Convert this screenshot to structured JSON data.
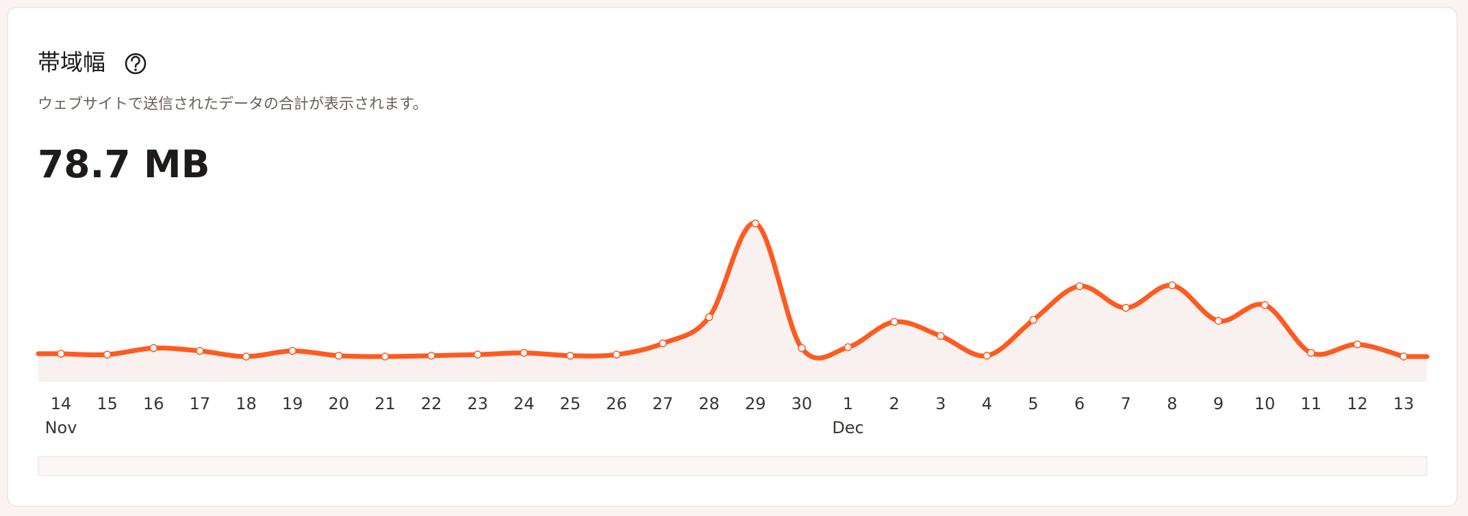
{
  "chart_data": {
    "type": "line",
    "title": "帯域幅",
    "subtitle": "ウェブサイトで送信されたデータの合計が表示されます。",
    "total": "78.7 MB",
    "categories": [
      "14",
      "15",
      "16",
      "17",
      "18",
      "19",
      "20",
      "21",
      "22",
      "23",
      "24",
      "25",
      "26",
      "27",
      "28",
      "29",
      "30",
      "1",
      "2",
      "3",
      "4",
      "5",
      "6",
      "7",
      "8",
      "9",
      "10",
      "11",
      "12",
      "13"
    ],
    "month_labels": [
      "Nov",
      null,
      null,
      null,
      null,
      null,
      null,
      null,
      null,
      null,
      null,
      null,
      null,
      null,
      null,
      null,
      null,
      "Dec",
      null,
      null,
      null,
      null,
      null,
      null,
      null,
      null,
      null,
      null,
      null,
      null
    ],
    "values": [
      1.6,
      1.55,
      1.92,
      1.76,
      1.44,
      1.76,
      1.49,
      1.44,
      1.49,
      1.55,
      1.65,
      1.49,
      1.55,
      2.19,
      3.68,
      9.01,
      1.92,
      1.97,
      3.41,
      2.61,
      1.49,
      3.52,
      5.44,
      4.21,
      5.49,
      3.47,
      4.37,
      1.65,
      2.13,
      1.44
    ],
    "color": "#ff5a1f",
    "ylim": [
      0,
      10
    ]
  }
}
